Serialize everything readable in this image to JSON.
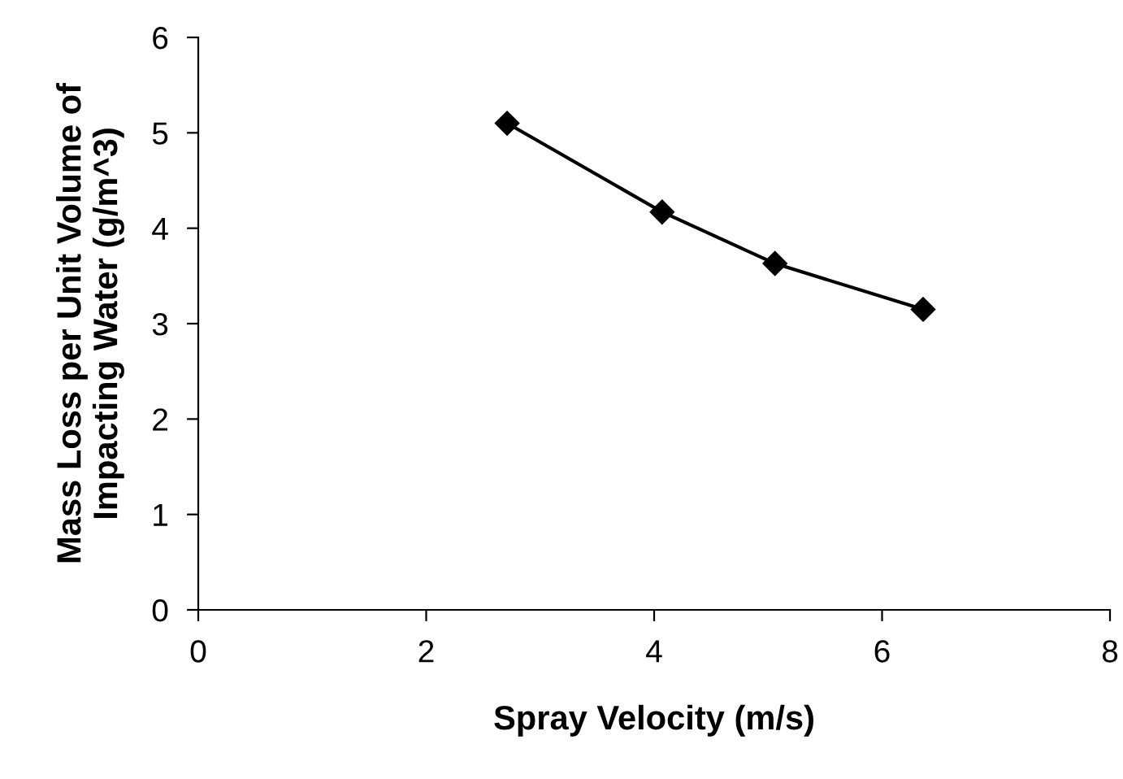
{
  "chart_data": {
    "type": "line",
    "xlabel": "Spray Velocity (m/s)",
    "ylabel": "Mass Loss per Unit Volume of\nImpacting Water (g/m^3)",
    "x": [
      2.71,
      4.07,
      5.06,
      6.36
    ],
    "series": [
      {
        "color": "#000000",
        "values": [
          5.1,
          4.17,
          3.63,
          3.15
        ]
      }
    ],
    "xlim": [
      0,
      8
    ],
    "xticks": [
      0,
      2,
      4,
      6,
      8
    ],
    "ylim": [
      0,
      6
    ],
    "yticks": [
      0,
      1,
      2,
      3,
      4,
      5,
      6
    ],
    "marker": "diamond",
    "line_style": "solid",
    "grid": false,
    "legend": false
  }
}
